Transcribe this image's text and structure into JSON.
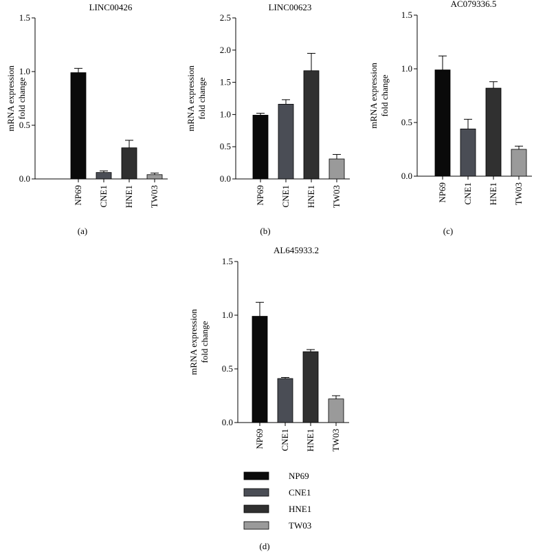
{
  "figure": {
    "legend": [
      {
        "label": "NP69",
        "color": "#0a0a0a"
      },
      {
        "label": "CNE1",
        "color": "#4a4d55"
      },
      {
        "label": "HNE1",
        "color": "#303030"
      },
      {
        "label": "TW03",
        "color": "#9a9a9a"
      }
    ]
  },
  "chart_data": [
    {
      "type": "bar",
      "title": "LINC00426",
      "panel_label": "(a)",
      "ylabel": [
        "mRNA expression",
        "fold change"
      ],
      "categories": [
        "NP69",
        "CNE1",
        "HNE1",
        "TW03"
      ],
      "values": [
        0.99,
        0.06,
        0.29,
        0.04
      ],
      "errors": [
        0.04,
        0.015,
        0.07,
        0.015
      ],
      "ylim": [
        0,
        1.5
      ],
      "yticks": [
        "0.0",
        "0.5",
        "1.0",
        "1.5"
      ],
      "colors": [
        "#0a0a0a",
        "#4a4d55",
        "#303030",
        "#9a9a9a"
      ]
    },
    {
      "type": "bar",
      "title": "LINC00623",
      "panel_label": "(b)",
      "ylabel": [
        "mRNA expression",
        "fold change"
      ],
      "categories": [
        "NP69",
        "CNE1",
        "HNE1",
        "TW03"
      ],
      "values": [
        0.99,
        1.16,
        1.68,
        0.31
      ],
      "errors": [
        0.03,
        0.07,
        0.27,
        0.07
      ],
      "ylim": [
        0,
        2.5
      ],
      "yticks": [
        "0.0",
        "0.5",
        "1.0",
        "1.5",
        "2.0",
        "2.5"
      ],
      "colors": [
        "#0a0a0a",
        "#4a4d55",
        "#303030",
        "#9a9a9a"
      ]
    },
    {
      "type": "bar",
      "title": "AC079336.5",
      "panel_label": "(c)",
      "ylabel": [
        "mRNA expression",
        "fold change"
      ],
      "categories": [
        "NP69",
        "CNE1",
        "HNE1",
        "TW03"
      ],
      "values": [
        0.99,
        0.44,
        0.82,
        0.25
      ],
      "errors": [
        0.13,
        0.09,
        0.06,
        0.03
      ],
      "ylim": [
        0,
        1.5
      ],
      "yticks": [
        "0.0",
        "0.5",
        "1.0",
        "1.5"
      ],
      "colors": [
        "#0a0a0a",
        "#4a4d55",
        "#303030",
        "#9a9a9a"
      ]
    },
    {
      "type": "bar",
      "title": "AL645933.2",
      "panel_label": "(d)",
      "ylabel": [
        "mRNA expression",
        "fold change"
      ],
      "categories": [
        "NP69",
        "CNE1",
        "HNE1",
        "TW03"
      ],
      "values": [
        0.99,
        0.41,
        0.66,
        0.22
      ],
      "errors": [
        0.13,
        0.01,
        0.02,
        0.03
      ],
      "ylim": [
        0,
        1.5
      ],
      "yticks": [
        "0.0",
        "0.5",
        "1.0",
        "1.5"
      ],
      "colors": [
        "#0a0a0a",
        "#4a4d55",
        "#303030",
        "#9a9a9a"
      ]
    }
  ]
}
